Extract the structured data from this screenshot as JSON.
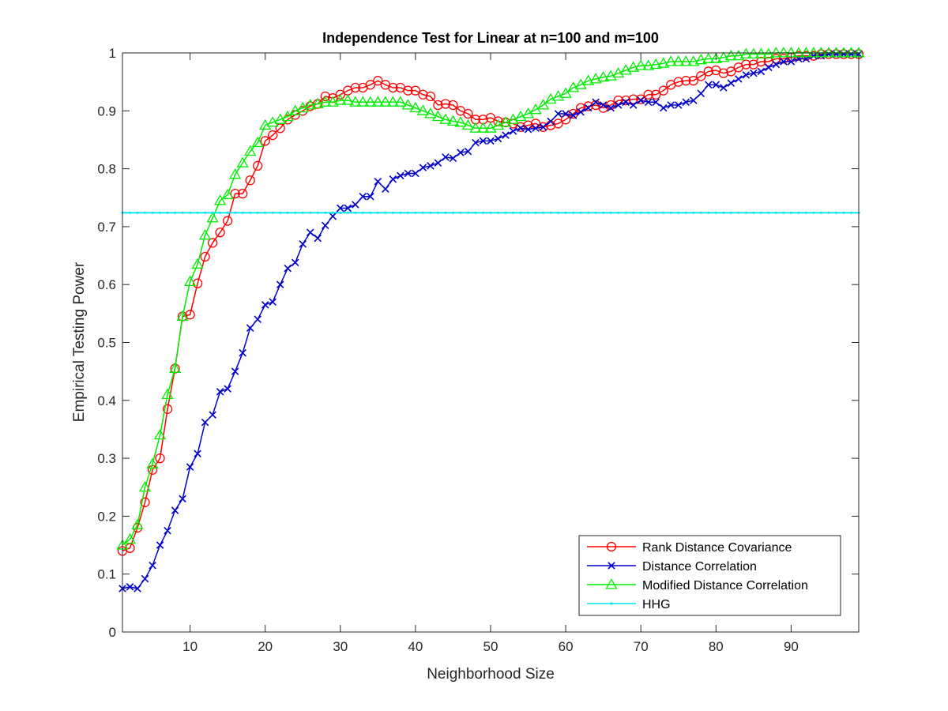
{
  "chart_data": {
    "type": "line",
    "title": "Independence Test for Linear at n=100 and m=100",
    "xlabel": "Neighborhood Size",
    "ylabel": "Empirical Testing Power",
    "xlim": [
      1,
      99
    ],
    "ylim": [
      0,
      1
    ],
    "xticks": [
      10,
      20,
      30,
      40,
      50,
      60,
      70,
      80,
      90
    ],
    "yticks": [
      0,
      0.1,
      0.2,
      0.3,
      0.4,
      0.5,
      0.6,
      0.7,
      0.8,
      0.9,
      1
    ],
    "grid": false,
    "legend_position": "bottom-right",
    "series": [
      {
        "name": "Rank Distance Covariance",
        "color": "#ff0000",
        "marker": "circle",
        "x": [
          1,
          2,
          3,
          4,
          5,
          6,
          7,
          8,
          9,
          10,
          11,
          12,
          13,
          14,
          15,
          16,
          17,
          18,
          19,
          20,
          21,
          22,
          23,
          24,
          25,
          26,
          27,
          28,
          29,
          30,
          31,
          32,
          33,
          34,
          35,
          36,
          37,
          38,
          39,
          40,
          41,
          42,
          43,
          44,
          45,
          46,
          47,
          48,
          49,
          50,
          51,
          52,
          53,
          54,
          55,
          56,
          57,
          58,
          59,
          60,
          61,
          62,
          63,
          64,
          65,
          66,
          67,
          68,
          69,
          70,
          71,
          72,
          73,
          74,
          75,
          76,
          77,
          78,
          79,
          80,
          81,
          82,
          83,
          84,
          85,
          86,
          87,
          88,
          89,
          90,
          91,
          92,
          93,
          94,
          95,
          96,
          97,
          98,
          99
        ],
        "values": [
          0.14,
          0.145,
          0.18,
          0.224,
          0.28,
          0.3,
          0.385,
          0.455,
          0.545,
          0.548,
          0.602,
          0.648,
          0.672,
          0.69,
          0.71,
          0.757,
          0.757,
          0.78,
          0.805,
          0.848,
          0.858,
          0.87,
          0.885,
          0.893,
          0.9,
          0.908,
          0.912,
          0.925,
          0.922,
          0.928,
          0.935,
          0.94,
          0.94,
          0.945,
          0.952,
          0.945,
          0.94,
          0.94,
          0.935,
          0.935,
          0.928,
          0.925,
          0.91,
          0.912,
          0.91,
          0.9,
          0.895,
          0.885,
          0.885,
          0.888,
          0.882,
          0.88,
          0.878,
          0.872,
          0.875,
          0.878,
          0.872,
          0.875,
          0.878,
          0.885,
          0.895,
          0.905,
          0.908,
          0.91,
          0.905,
          0.91,
          0.918,
          0.918,
          0.92,
          0.92,
          0.928,
          0.928,
          0.935,
          0.945,
          0.95,
          0.952,
          0.952,
          0.96,
          0.968,
          0.97,
          0.965,
          0.968,
          0.975,
          0.98,
          0.98,
          0.985,
          0.985,
          0.99,
          0.99,
          0.992,
          0.995,
          0.995,
          0.995,
          0.998,
          0.998,
          0.998,
          0.998,
          0.998,
          0.998
        ]
      },
      {
        "name": "Distance Correlation",
        "color": "#0000cc",
        "marker": "x",
        "x": [
          1,
          2,
          3,
          4,
          5,
          6,
          7,
          8,
          9,
          10,
          11,
          12,
          13,
          14,
          15,
          16,
          17,
          18,
          19,
          20,
          21,
          22,
          23,
          24,
          25,
          26,
          27,
          28,
          29,
          30,
          31,
          32,
          33,
          34,
          35,
          36,
          37,
          38,
          39,
          40,
          41,
          42,
          43,
          44,
          45,
          46,
          47,
          48,
          49,
          50,
          51,
          52,
          53,
          54,
          55,
          56,
          57,
          58,
          59,
          60,
          61,
          62,
          63,
          64,
          65,
          66,
          67,
          68,
          69,
          70,
          71,
          72,
          73,
          74,
          75,
          76,
          77,
          78,
          79,
          80,
          81,
          82,
          83,
          84,
          85,
          86,
          87,
          88,
          89,
          90,
          91,
          92,
          93,
          94,
          95,
          96,
          97,
          98,
          99
        ],
        "values": [
          0.075,
          0.078,
          0.075,
          0.092,
          0.115,
          0.15,
          0.175,
          0.21,
          0.23,
          0.285,
          0.308,
          0.362,
          0.375,
          0.415,
          0.42,
          0.45,
          0.482,
          0.525,
          0.54,
          0.565,
          0.57,
          0.6,
          0.628,
          0.638,
          0.67,
          0.69,
          0.68,
          0.702,
          0.718,
          0.732,
          0.732,
          0.738,
          0.752,
          0.752,
          0.778,
          0.765,
          0.782,
          0.788,
          0.792,
          0.792,
          0.802,
          0.805,
          0.81,
          0.82,
          0.818,
          0.828,
          0.83,
          0.845,
          0.848,
          0.848,
          0.852,
          0.858,
          0.865,
          0.87,
          0.868,
          0.87,
          0.872,
          0.882,
          0.895,
          0.895,
          0.892,
          0.898,
          0.905,
          0.915,
          0.91,
          0.905,
          0.91,
          0.915,
          0.91,
          0.918,
          0.915,
          0.915,
          0.905,
          0.91,
          0.91,
          0.915,
          0.918,
          0.93,
          0.945,
          0.945,
          0.94,
          0.948,
          0.955,
          0.962,
          0.965,
          0.968,
          0.975,
          0.98,
          0.985,
          0.985,
          0.99,
          0.99,
          0.995,
          0.995,
          0.998,
          0.998,
          0.998,
          0.998,
          0.998
        ]
      },
      {
        "name": "Modified Distance Correlation",
        "color": "#00ee00",
        "marker": "triangle",
        "x": [
          1,
          2,
          3,
          4,
          5,
          6,
          7,
          8,
          9,
          10,
          11,
          12,
          13,
          14,
          15,
          16,
          17,
          18,
          19,
          20,
          21,
          22,
          23,
          24,
          25,
          26,
          27,
          28,
          29,
          30,
          31,
          32,
          33,
          34,
          35,
          36,
          37,
          38,
          39,
          40,
          41,
          42,
          43,
          44,
          45,
          46,
          47,
          48,
          49,
          50,
          51,
          52,
          53,
          54,
          55,
          56,
          57,
          58,
          59,
          60,
          61,
          62,
          63,
          64,
          65,
          66,
          67,
          68,
          69,
          70,
          71,
          72,
          73,
          74,
          75,
          76,
          77,
          78,
          79,
          80,
          81,
          82,
          83,
          84,
          85,
          86,
          87,
          88,
          89,
          90,
          91,
          92,
          93,
          94,
          95,
          96,
          97,
          98,
          99
        ],
        "values": [
          0.15,
          0.16,
          0.185,
          0.25,
          0.29,
          0.34,
          0.41,
          0.455,
          0.545,
          0.605,
          0.635,
          0.685,
          0.715,
          0.745,
          0.755,
          0.79,
          0.81,
          0.83,
          0.845,
          0.875,
          0.88,
          0.885,
          0.89,
          0.9,
          0.905,
          0.91,
          0.912,
          0.915,
          0.915,
          0.918,
          0.918,
          0.915,
          0.915,
          0.915,
          0.915,
          0.915,
          0.915,
          0.915,
          0.91,
          0.905,
          0.9,
          0.895,
          0.89,
          0.885,
          0.882,
          0.88,
          0.875,
          0.87,
          0.87,
          0.87,
          0.875,
          0.88,
          0.885,
          0.89,
          0.895,
          0.902,
          0.91,
          0.92,
          0.925,
          0.93,
          0.94,
          0.945,
          0.952,
          0.955,
          0.958,
          0.96,
          0.965,
          0.97,
          0.975,
          0.978,
          0.978,
          0.98,
          0.982,
          0.985,
          0.985,
          0.985,
          0.985,
          0.988,
          0.99,
          0.99,
          0.992,
          0.995,
          0.995,
          0.998,
          0.998,
          0.998,
          0.998,
          1,
          1,
          1,
          1,
          1,
          1,
          1,
          1,
          1,
          1,
          1,
          1
        ]
      },
      {
        "name": "HHG",
        "color": "#00e5ee",
        "marker": "dot",
        "x": [
          1,
          2,
          3,
          4,
          5,
          6,
          7,
          8,
          9,
          10,
          11,
          12,
          13,
          14,
          15,
          16,
          17,
          18,
          19,
          20,
          21,
          22,
          23,
          24,
          25,
          26,
          27,
          28,
          29,
          30,
          31,
          32,
          33,
          34,
          35,
          36,
          37,
          38,
          39,
          40,
          41,
          42,
          43,
          44,
          45,
          46,
          47,
          48,
          49,
          50,
          51,
          52,
          53,
          54,
          55,
          56,
          57,
          58,
          59,
          60,
          61,
          62,
          63,
          64,
          65,
          66,
          67,
          68,
          69,
          70,
          71,
          72,
          73,
          74,
          75,
          76,
          77,
          78,
          79,
          80,
          81,
          82,
          83,
          84,
          85,
          86,
          87,
          88,
          89,
          90,
          91,
          92,
          93,
          94,
          95,
          96,
          97,
          98,
          99
        ],
        "values": [
          0.724,
          0.724,
          0.724,
          0.724,
          0.724,
          0.724,
          0.724,
          0.724,
          0.724,
          0.724,
          0.724,
          0.724,
          0.724,
          0.724,
          0.724,
          0.724,
          0.724,
          0.724,
          0.724,
          0.724,
          0.724,
          0.724,
          0.724,
          0.724,
          0.724,
          0.724,
          0.724,
          0.724,
          0.724,
          0.724,
          0.724,
          0.724,
          0.724,
          0.724,
          0.724,
          0.724,
          0.724,
          0.724,
          0.724,
          0.724,
          0.724,
          0.724,
          0.724,
          0.724,
          0.724,
          0.724,
          0.724,
          0.724,
          0.724,
          0.724,
          0.724,
          0.724,
          0.724,
          0.724,
          0.724,
          0.724,
          0.724,
          0.724,
          0.724,
          0.724,
          0.724,
          0.724,
          0.724,
          0.724,
          0.724,
          0.724,
          0.724,
          0.724,
          0.724,
          0.724,
          0.724,
          0.724,
          0.724,
          0.724,
          0.724,
          0.724,
          0.724,
          0.724,
          0.724,
          0.724,
          0.724,
          0.724,
          0.724,
          0.724,
          0.724,
          0.724,
          0.724,
          0.724,
          0.724,
          0.724,
          0.724,
          0.724,
          0.724,
          0.724,
          0.724,
          0.724,
          0.724,
          0.724,
          0.724
        ]
      }
    ]
  }
}
